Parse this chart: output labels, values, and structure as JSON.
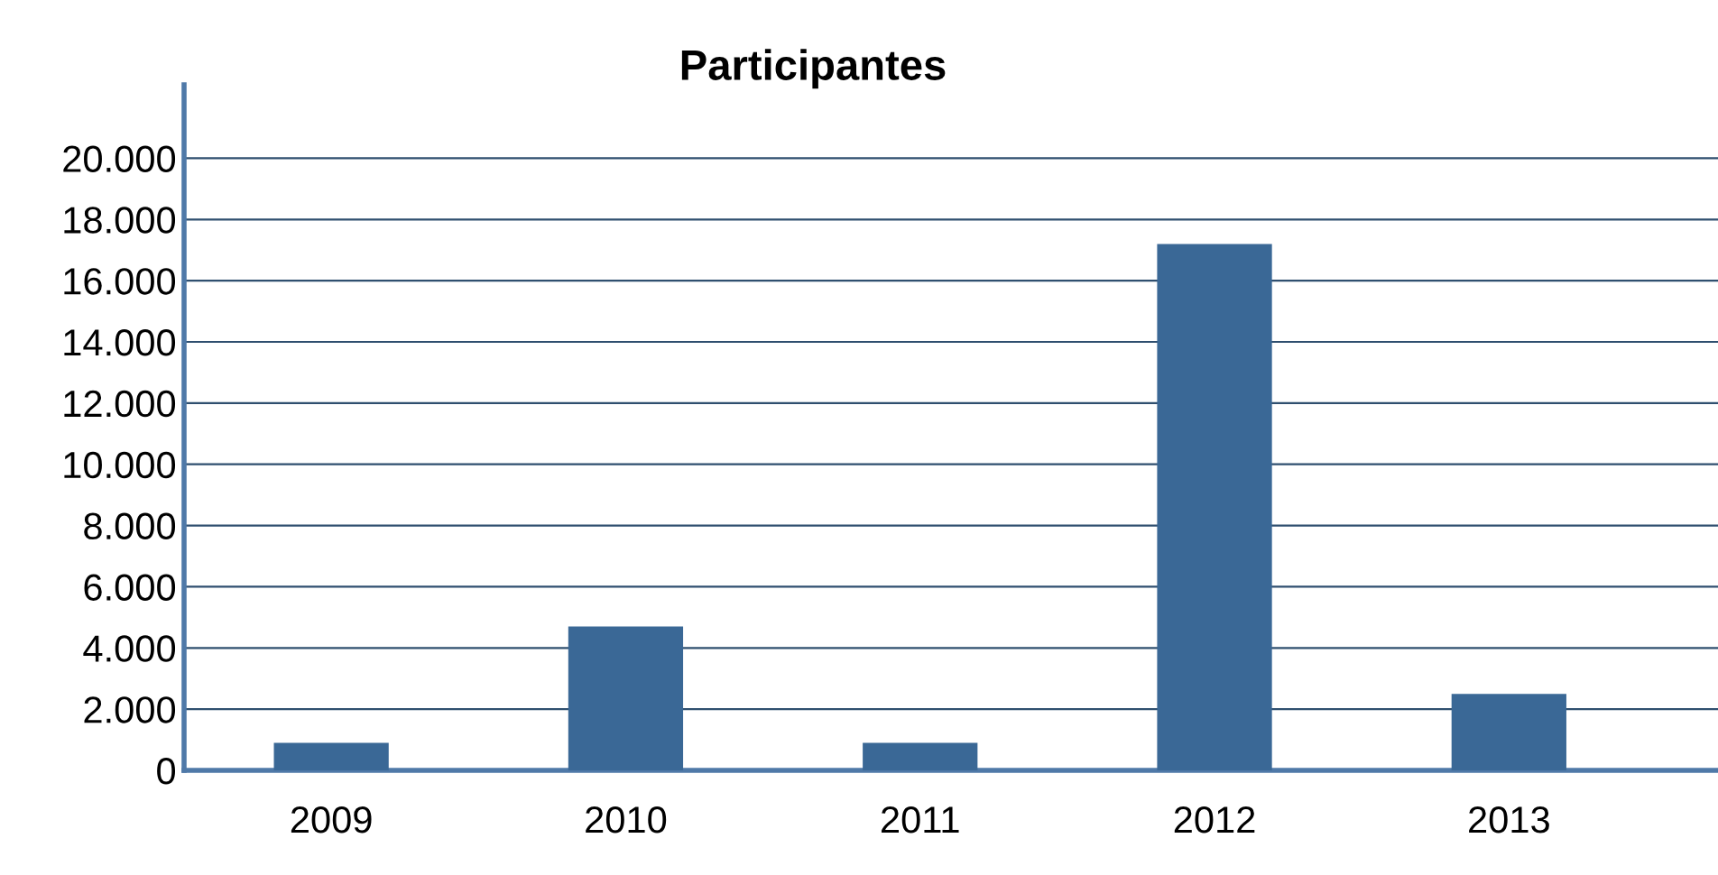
{
  "chart_data": {
    "type": "bar",
    "title": "Participantes",
    "categories": [
      "2009",
      "2010",
      "2011",
      "2012",
      "2013"
    ],
    "values": [
      900,
      4700,
      900,
      17200,
      2500
    ],
    "color": "#3a6896",
    "ylim": [
      0,
      22400
    ],
    "yticks": [
      0,
      {
        "value": 2000,
        "label": "2.000"
      },
      {
        "value": 4000,
        "label": "4.000"
      },
      {
        "value": 6000,
        "label": "6.000"
      },
      {
        "value": 8000,
        "label": "8.000"
      },
      {
        "value": 10000,
        "label": "10.000"
      },
      {
        "value": 12000,
        "label": "12.000"
      },
      {
        "value": 14000,
        "label": "14.000"
      },
      {
        "value": 16000,
        "label": "16.000"
      },
      {
        "value": 18000,
        "label": "18.000"
      },
      {
        "value": 20000,
        "label": "20.000"
      }
    ],
    "grid": "y"
  }
}
